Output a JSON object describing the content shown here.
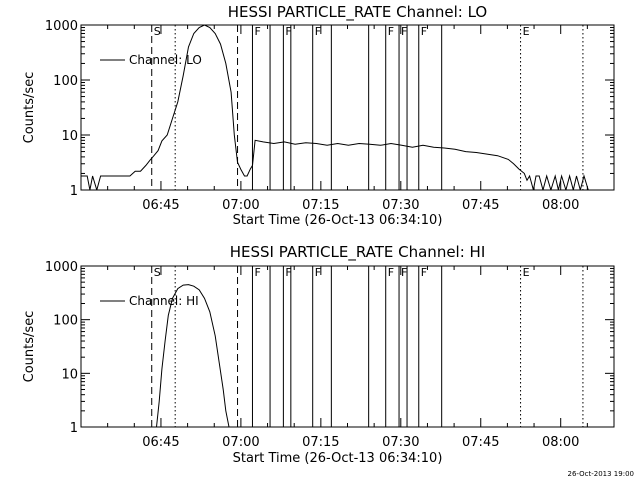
{
  "footer": {
    "timestamp": "26-Oct-2013 19:00"
  },
  "chart_data": [
    {
      "type": "line",
      "title": "HESSI PARTICLE_RATE Channel: LO",
      "xlabel": "Start Time (26-Oct-13 06:34:10)",
      "ylabel": "Counts/sec",
      "y_scale": "log",
      "ylim": [
        1,
        1000
      ],
      "xlim_minutes": [
        -4.17,
        95.83
      ],
      "x_ticks": [
        {
          "label": "06:45",
          "min": 10.83
        },
        {
          "label": "07:00",
          "min": 25.83
        },
        {
          "label": "07:15",
          "min": 40.83
        },
        {
          "label": "07:30",
          "min": 55.83
        },
        {
          "label": "07:45",
          "min": 70.83
        },
        {
          "label": "08:00",
          "min": 85.83
        }
      ],
      "y_ticks": [
        {
          "label": "1",
          "v": 1
        },
        {
          "label": "10",
          "v": 10
        },
        {
          "label": "100",
          "v": 100
        },
        {
          "label": "1000",
          "v": 1000
        }
      ],
      "legend": {
        "label": "Channel: LO",
        "position": "top-left"
      },
      "markers": [
        {
          "min": 9.1,
          "style": "dashed",
          "label": "S"
        },
        {
          "min": 13.5,
          "style": "dotted",
          "label": ""
        },
        {
          "min": 25.2,
          "style": "dashed",
          "label": ""
        },
        {
          "min": 28.0,
          "style": "solid",
          "label": "F"
        },
        {
          "min": 31.3,
          "style": "solid",
          "label": ""
        },
        {
          "min": 33.8,
          "style": "solid",
          "label": "F"
        },
        {
          "min": 35.2,
          "style": "solid",
          "label": ""
        },
        {
          "min": 39.3,
          "style": "solid",
          "label": "F"
        },
        {
          "min": 42.8,
          "style": "solid",
          "label": ""
        },
        {
          "min": 49.8,
          "style": "solid",
          "label": ""
        },
        {
          "min": 53.0,
          "style": "solid",
          "label": "F"
        },
        {
          "min": 55.5,
          "style": "solid",
          "label": "F"
        },
        {
          "min": 57.0,
          "style": "solid",
          "label": ""
        },
        {
          "min": 59.2,
          "style": "solid",
          "label": "F"
        },
        {
          "min": 63.5,
          "style": "solid",
          "label": ""
        },
        {
          "min": 78.3,
          "style": "dotted",
          "label": "E"
        },
        {
          "min": 90.0,
          "style": "dotted",
          "label": ""
        }
      ],
      "series": [
        {
          "x_min": [
            -4.17,
            -3.0,
            -2.5,
            -2.0,
            -1.2,
            -0.5,
            0.3,
            1.0,
            2.0,
            3.0,
            4.0,
            5.0,
            6.0,
            7.0,
            8.0,
            8.8,
            9.5,
            10.3,
            11.0,
            12.0,
            13.0,
            14.0,
            15.0,
            16.0,
            17.0,
            18.0,
            19.0,
            20.0,
            21.0,
            22.0,
            23.0,
            24.0,
            24.6,
            25.2,
            25.8,
            26.5,
            27.0,
            27.6,
            28.0,
            28.5,
            30.0,
            32.0,
            34.0,
            36.0,
            38.0,
            40.0,
            42.0,
            44.0,
            46.0,
            48.0,
            50.0,
            52.0,
            54.0,
            56.0,
            58.0,
            60.0,
            62.0,
            64.0,
            66.0,
            68.0,
            70.0,
            72.0,
            74.0,
            76.0,
            77.0,
            78.0,
            79.0,
            79.5,
            80.0,
            80.7,
            81.2,
            81.8,
            82.5,
            83.2,
            84.0,
            84.8,
            85.4,
            86.0,
            86.8,
            87.5,
            88.2,
            88.8,
            89.5,
            90.2,
            91.0,
            92.0,
            93.5,
            95.83
          ],
          "y": [
            1.8,
            1.8,
            1.0,
            1.8,
            1.0,
            1.8,
            1.8,
            1.8,
            1.8,
            1.8,
            1.8,
            1.8,
            2.2,
            2.2,
            2.8,
            3.5,
            4.2,
            5.2,
            7.8,
            10.0,
            20.0,
            40.0,
            120.0,
            400.0,
            700.0,
            900.0,
            1000.0,
            900.0,
            700.0,
            450.0,
            200.0,
            60.0,
            10.0,
            3.2,
            2.4,
            1.8,
            1.8,
            2.4,
            2.8,
            8.0,
            7.5,
            7.0,
            7.5,
            6.8,
            7.2,
            7.0,
            6.5,
            7.0,
            6.5,
            7.0,
            6.8,
            6.5,
            7.0,
            6.5,
            6.0,
            6.5,
            6.0,
            5.8,
            5.5,
            5.0,
            4.8,
            4.5,
            4.2,
            3.6,
            3.0,
            2.4,
            2.0,
            1.5,
            1.8,
            1.0,
            1.8,
            1.8,
            1.0,
            1.8,
            1.0,
            1.8,
            1.0,
            1.8,
            1.0,
            1.8,
            1.0,
            1.8,
            1.0,
            1.8,
            1.0,
            1.0,
            1.0,
            1.0
          ]
        }
      ]
    },
    {
      "type": "line",
      "title": "HESSI PARTICLE_RATE Channel: HI",
      "xlabel": "Start Time (26-Oct-13 06:34:10)",
      "ylabel": "Counts/sec",
      "y_scale": "log",
      "ylim": [
        1,
        1000
      ],
      "xlim_minutes": [
        -4.17,
        95.83
      ],
      "x_ticks": [
        {
          "label": "06:45",
          "min": 10.83
        },
        {
          "label": "07:00",
          "min": 25.83
        },
        {
          "label": "07:15",
          "min": 40.83
        },
        {
          "label": "07:30",
          "min": 55.83
        },
        {
          "label": "07:45",
          "min": 70.83
        },
        {
          "label": "08:00",
          "min": 85.83
        }
      ],
      "y_ticks": [
        {
          "label": "1",
          "v": 1
        },
        {
          "label": "10",
          "v": 10
        },
        {
          "label": "100",
          "v": 100
        },
        {
          "label": "1000",
          "v": 1000
        }
      ],
      "legend": {
        "label": "Channel: HI",
        "position": "top-left"
      },
      "markers": [
        {
          "min": 9.1,
          "style": "dashed",
          "label": "S"
        },
        {
          "min": 13.5,
          "style": "dotted",
          "label": ""
        },
        {
          "min": 25.2,
          "style": "dashed",
          "label": ""
        },
        {
          "min": 28.0,
          "style": "solid",
          "label": "F"
        },
        {
          "min": 31.3,
          "style": "solid",
          "label": ""
        },
        {
          "min": 33.8,
          "style": "solid",
          "label": "F"
        },
        {
          "min": 35.2,
          "style": "solid",
          "label": ""
        },
        {
          "min": 39.3,
          "style": "solid",
          "label": "F"
        },
        {
          "min": 42.8,
          "style": "solid",
          "label": ""
        },
        {
          "min": 49.8,
          "style": "solid",
          "label": ""
        },
        {
          "min": 53.0,
          "style": "solid",
          "label": "F"
        },
        {
          "min": 55.5,
          "style": "solid",
          "label": "F"
        },
        {
          "min": 57.0,
          "style": "solid",
          "label": ""
        },
        {
          "min": 59.2,
          "style": "solid",
          "label": "F"
        },
        {
          "min": 63.5,
          "style": "solid",
          "label": ""
        },
        {
          "min": 78.3,
          "style": "dotted",
          "label": "E"
        },
        {
          "min": 90.0,
          "style": "dotted",
          "label": ""
        }
      ],
      "series": [
        {
          "x_min": [
            10.0,
            10.5,
            11.0,
            11.6,
            12.2,
            13.0,
            14.0,
            15.0,
            16.0,
            17.0,
            18.0,
            19.0,
            20.0,
            21.0,
            21.8,
            22.5,
            23.0,
            23.6
          ],
          "y": [
            1.0,
            3.0,
            12.0,
            40.0,
            120.0,
            250.0,
            380.0,
            440.0,
            450.0,
            420.0,
            360.0,
            250.0,
            140.0,
            50.0,
            15.0,
            5.0,
            2.0,
            1.0
          ]
        }
      ]
    }
  ]
}
